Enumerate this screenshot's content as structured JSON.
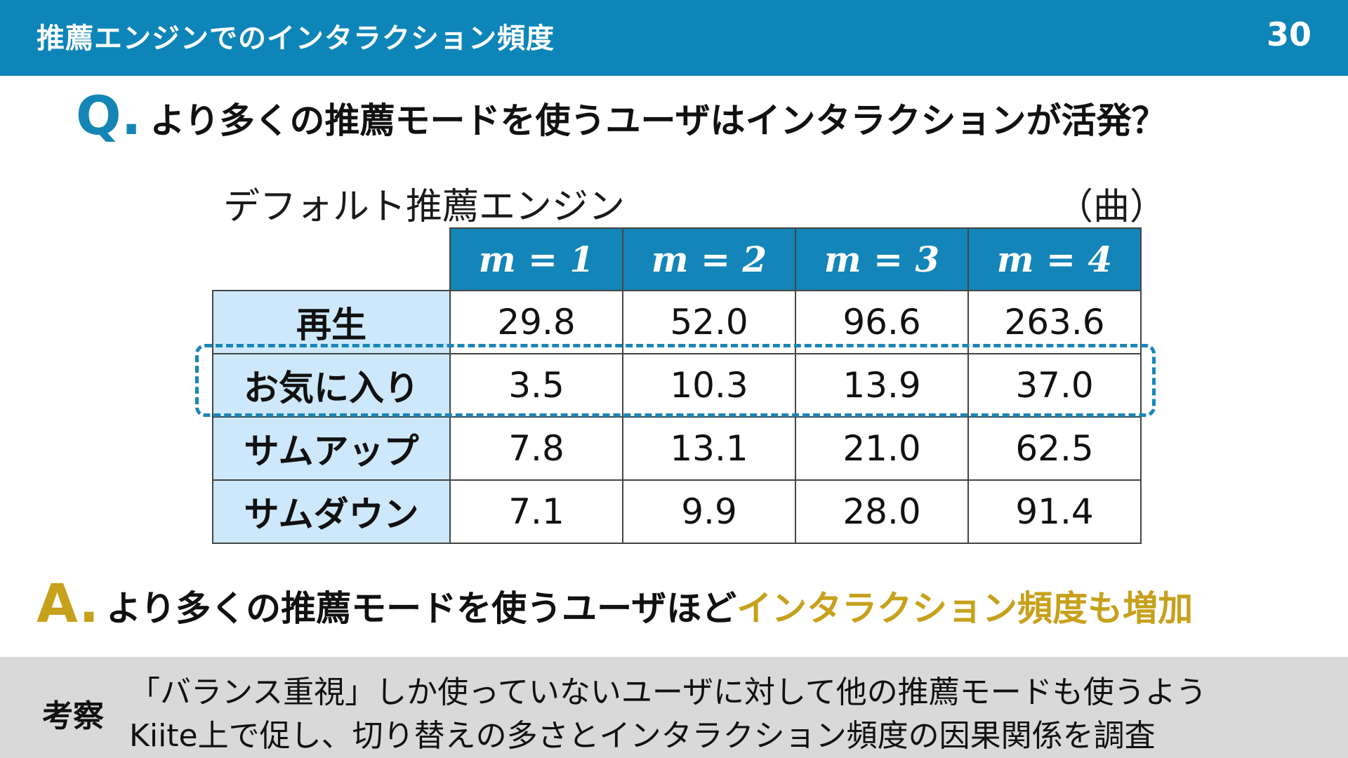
{
  "header": {
    "title": "推薦エンジンでのインタラクション頻度",
    "page_number": "30"
  },
  "question": {
    "marker": "Q.",
    "text": "より多くの推薦モードを使うユーザはインタラクションが活発？"
  },
  "table": {
    "title": "デフォルト推薦エンジン",
    "unit": "（曲）",
    "columns": [
      "m = 1",
      "m = 2",
      "m = 3",
      "m = 4"
    ],
    "rows": [
      {
        "label": "再生",
        "values": [
          "29.8",
          "52.0",
          "96.6",
          "263.6"
        ]
      },
      {
        "label": "お気に入り",
        "values": [
          "3.5",
          "10.3",
          "13.9",
          "37.0"
        ]
      },
      {
        "label": "サムアップ",
        "values": [
          "7.8",
          "13.1",
          "21.0",
          "62.5"
        ]
      },
      {
        "label": "サムダウン",
        "values": [
          "7.1",
          "9.9",
          "28.0",
          "91.4"
        ]
      }
    ],
    "highlighted_row": "お気に入り"
  },
  "answer": {
    "marker": "A.",
    "text": "より多くの推薦モードを使うユーザほど",
    "highlight": "インタラクション頻度も増加"
  },
  "footer": {
    "label": "考察",
    "line1": "「バランス重視」しか使っていないユーザに対して他の推薦モードも使うよう",
    "line2": "Kiite上で促し、切り替えの多さとインタラクション頻度の因果関係を調査"
  },
  "colors": {
    "header_bg": "#0e85b8",
    "question_accent": "#1386b5",
    "answer_accent": "#c7a11c",
    "row_header_bg": "#cde8fb",
    "footer_bg": "#d9d9d9"
  }
}
